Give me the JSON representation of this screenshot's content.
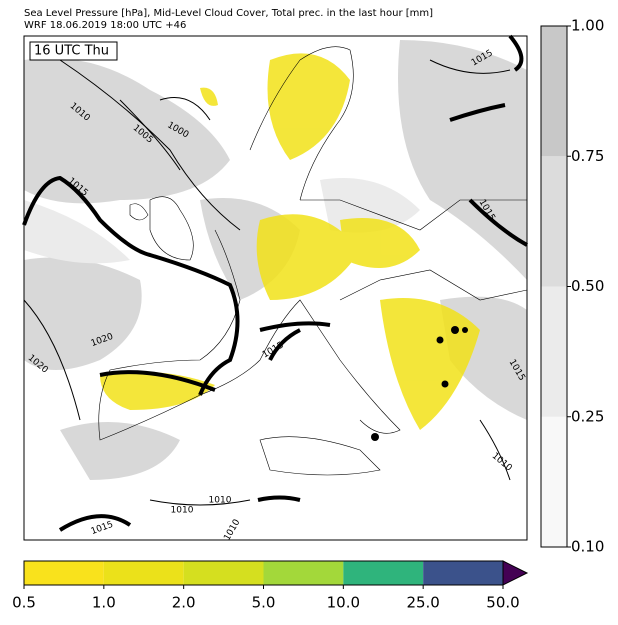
{
  "header": {
    "lines": [
      "Sea Level Pressure [hPa], Mid-Level Cloud Cover, Total prec. in the last hour [mm]",
      "WRF 18.06.2019 18:00 UTC +46"
    ]
  },
  "map": {
    "time_label": "16 UTC Thu",
    "isobar_labels": [
      "1015",
      "1010",
      "1005",
      "1000",
      "1015",
      "1015",
      "1020",
      "1020",
      "1015",
      "1015",
      "1010",
      "1010",
      "1010",
      "1015",
      "1010"
    ]
  },
  "precip_colorbar": {
    "colors": [
      "#f9e21c",
      "#ebe11a",
      "#d5df1f",
      "#a3d83a",
      "#2fb47c",
      "#3b528b",
      "#440154"
    ],
    "ticks": [
      0.5,
      {
        "value": 1,
        "label": "1.0"
      },
      {
        "value": 2,
        "label": "2.0"
      },
      {
        "value": 5,
        "label": "5.0"
      },
      {
        "value": 10,
        "label": "10.0"
      },
      {
        "value": 25,
        "label": "25.0"
      },
      {
        "value": 50,
        "label": "50.0"
      }
    ]
  },
  "cloud_colorbar": {
    "colors": [
      "#f8f8f8",
      "#ebebeb",
      "#dcdcdc",
      "#c8c8c8"
    ],
    "ticks": [
      {
        "value": 0.1,
        "label": "0.10"
      },
      {
        "value": 0.25,
        "label": "0.25"
      },
      {
        "value": 0.5,
        "label": "0.50"
      },
      {
        "value": 0.75,
        "label": "0.75"
      },
      {
        "value": 1,
        "label": "1.00"
      }
    ]
  }
}
